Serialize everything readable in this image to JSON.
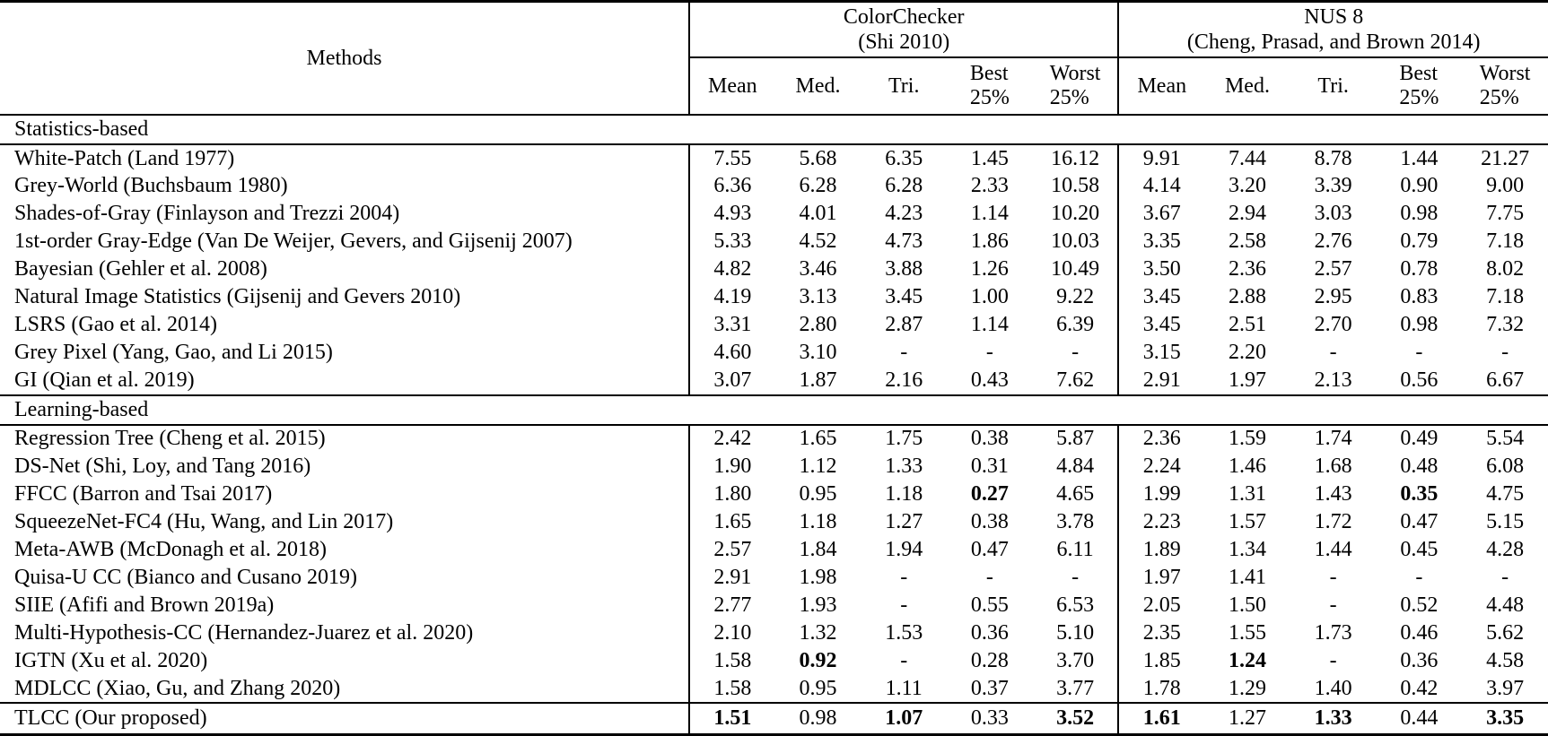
{
  "table": {
    "methods_header": "Methods",
    "groups": [
      {
        "key": "cc",
        "title": "ColorChecker",
        "subtitle": "(Shi 2010)"
      },
      {
        "key": "nus",
        "title": "NUS 8",
        "subtitle": "(Cheng, Prasad, and Brown 2014)"
      }
    ],
    "metric_headers": [
      {
        "key": "mean",
        "lines": [
          "Mean"
        ]
      },
      {
        "key": "med",
        "lines": [
          "Med."
        ]
      },
      {
        "key": "tri",
        "lines": [
          "Tri."
        ]
      },
      {
        "key": "best25",
        "lines": [
          "Best",
          "25%"
        ]
      },
      {
        "key": "worst25",
        "lines": [
          "Worst",
          "25%"
        ]
      }
    ],
    "sections": [
      {
        "label": "Statistics-based",
        "rows": [
          {
            "method": "White-Patch (Land 1977)",
            "values": [
              "7.55",
              "5.68",
              "6.35",
              "1.45",
              "16.12",
              "9.91",
              "7.44",
              "8.78",
              "1.44",
              "21.27"
            ],
            "bold": []
          },
          {
            "method": "Grey-World (Buchsbaum 1980)",
            "values": [
              "6.36",
              "6.28",
              "6.28",
              "2.33",
              "10.58",
              "4.14",
              "3.20",
              "3.39",
              "0.90",
              "9.00"
            ],
            "bold": []
          },
          {
            "method": "Shades-of-Gray (Finlayson and Trezzi 2004)",
            "values": [
              "4.93",
              "4.01",
              "4.23",
              "1.14",
              "10.20",
              "3.67",
              "2.94",
              "3.03",
              "0.98",
              "7.75"
            ],
            "bold": []
          },
          {
            "method": "1st-order Gray-Edge (Van De Weijer, Gevers, and Gijsenij 2007)",
            "values": [
              "5.33",
              "4.52",
              "4.73",
              "1.86",
              "10.03",
              "3.35",
              "2.58",
              "2.76",
              "0.79",
              "7.18"
            ],
            "bold": []
          },
          {
            "method": "Bayesian (Gehler et al. 2008)",
            "values": [
              "4.82",
              "3.46",
              "3.88",
              "1.26",
              "10.49",
              "3.50",
              "2.36",
              "2.57",
              "0.78",
              "8.02"
            ],
            "bold": []
          },
          {
            "method": "Natural Image Statistics (Gijsenij and Gevers 2010)",
            "values": [
              "4.19",
              "3.13",
              "3.45",
              "1.00",
              "9.22",
              "3.45",
              "2.88",
              "2.95",
              "0.83",
              "7.18"
            ],
            "bold": []
          },
          {
            "method": "LSRS (Gao et al. 2014)",
            "values": [
              "3.31",
              "2.80",
              "2.87",
              "1.14",
              "6.39",
              "3.45",
              "2.51",
              "2.70",
              "0.98",
              "7.32"
            ],
            "bold": []
          },
          {
            "method": "Grey Pixel (Yang, Gao, and Li 2015)",
            "values": [
              "4.60",
              "3.10",
              "-",
              "-",
              "-",
              "3.15",
              "2.20",
              "-",
              "-",
              "-"
            ],
            "bold": []
          },
          {
            "method": "GI (Qian et al. 2019)",
            "values": [
              "3.07",
              "1.87",
              "2.16",
              "0.43",
              "7.62",
              "2.91",
              "1.97",
              "2.13",
              "0.56",
              "6.67"
            ],
            "bold": []
          }
        ]
      },
      {
        "label": "Learning-based",
        "rows": [
          {
            "method": "Regression Tree (Cheng et al. 2015)",
            "values": [
              "2.42",
              "1.65",
              "1.75",
              "0.38",
              "5.87",
              "2.36",
              "1.59",
              "1.74",
              "0.49",
              "5.54"
            ],
            "bold": []
          },
          {
            "method": "DS-Net (Shi, Loy, and Tang 2016)",
            "values": [
              "1.90",
              "1.12",
              "1.33",
              "0.31",
              "4.84",
              "2.24",
              "1.46",
              "1.68",
              "0.48",
              "6.08"
            ],
            "bold": []
          },
          {
            "method": "FFCC (Barron and Tsai 2017)",
            "values": [
              "1.80",
              "0.95",
              "1.18",
              "0.27",
              "4.65",
              "1.99",
              "1.31",
              "1.43",
              "0.35",
              "4.75"
            ],
            "bold": [
              3,
              8
            ]
          },
          {
            "method": "SqueezeNet-FC4 (Hu, Wang, and Lin 2017)",
            "values": [
              "1.65",
              "1.18",
              "1.27",
              "0.38",
              "3.78",
              "2.23",
              "1.57",
              "1.72",
              "0.47",
              "5.15"
            ],
            "bold": []
          },
          {
            "method": "Meta-AWB (McDonagh et al. 2018)",
            "values": [
              "2.57",
              "1.84",
              "1.94",
              "0.47",
              "6.11",
              "1.89",
              "1.34",
              "1.44",
              "0.45",
              "4.28"
            ],
            "bold": []
          },
          {
            "method": "Quisa-U CC (Bianco and Cusano 2019)",
            "values": [
              "2.91",
              "1.98",
              "-",
              "-",
              "-",
              "1.97",
              "1.41",
              "-",
              "-",
              "-"
            ],
            "bold": []
          },
          {
            "method": "SIIE (Afifi and Brown 2019a)",
            "values": [
              "2.77",
              "1.93",
              "-",
              "0.55",
              "6.53",
              "2.05",
              "1.50",
              "-",
              "0.52",
              "4.48"
            ],
            "bold": []
          },
          {
            "method": "Multi-Hypothesis-CC (Hernandez-Juarez et al. 2020)",
            "values": [
              "2.10",
              "1.32",
              "1.53",
              "0.36",
              "5.10",
              "2.35",
              "1.55",
              "1.73",
              "0.46",
              "5.62"
            ],
            "bold": []
          },
          {
            "method": "IGTN (Xu et al. 2020)",
            "values": [
              "1.58",
              "0.92",
              "-",
              "0.28",
              "3.70",
              "1.85",
              "1.24",
              "-",
              "0.36",
              "4.58"
            ],
            "bold": [
              1,
              6
            ]
          },
          {
            "method": "MDLCC (Xiao, Gu, and Zhang 2020)",
            "values": [
              "1.58",
              "0.95",
              "1.11",
              "0.37",
              "3.77",
              "1.78",
              "1.29",
              "1.40",
              "0.42",
              "3.97"
            ],
            "bold": []
          }
        ]
      }
    ],
    "final_row": {
      "method": "TLCC (Our proposed)",
      "values": [
        "1.51",
        "0.98",
        "1.07",
        "0.33",
        "3.52",
        "1.61",
        "1.27",
        "1.33",
        "0.44",
        "3.35"
      ],
      "bold": [
        0,
        2,
        4,
        5,
        7,
        9
      ]
    }
  }
}
